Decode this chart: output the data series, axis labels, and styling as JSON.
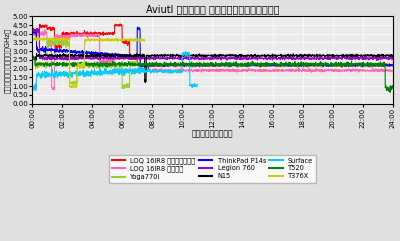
{
  "title": "Aviutl エンコード 平均クロックスピード推移",
  "xlabel": "経過時間（分：秒）",
  "ylabel": "平均クロックスピード（GHz）",
  "ylim": [
    0.0,
    5.0
  ],
  "yticks": [
    0.0,
    0.5,
    1.0,
    1.5,
    2.0,
    2.5,
    3.0,
    3.5,
    4.0,
    4.5,
    5.0
  ],
  "xtick_minutes": [
    0,
    2,
    4,
    6,
    8,
    10,
    12,
    14,
    16,
    18,
    20,
    22,
    24
  ],
  "background_color": "#e0e0e0",
  "plot_bg_color": "#ebebeb",
  "grid_color": "#ffffff",
  "series": {
    "LOQ 16IR8 パフォーマンス": {
      "color": "#ff0000",
      "lw": 0.8
    },
    "LOQ 16IR8 バランス": {
      "color": "#ff69b4",
      "lw": 0.8
    },
    "Yoga770i": {
      "color": "#9acd32",
      "lw": 0.8
    },
    "ThinkPad P14s": {
      "color": "#0000ff",
      "lw": 0.8
    },
    "Legion 760": {
      "color": "#9900cc",
      "lw": 0.8
    },
    "N15": {
      "color": "#000000",
      "lw": 0.8
    },
    "Surface": {
      "color": "#00ccff",
      "lw": 0.8
    },
    "T520": {
      "color": "#008000",
      "lw": 0.8
    },
    "T376X": {
      "color": "#cccc00",
      "lw": 0.8
    }
  },
  "legend_order": [
    "LOQ 16IR8 パフォーマンス",
    "LOQ 16IR8 バランス",
    "Yoga770i",
    "ThinkPad P14s",
    "Legion 760",
    "N15",
    "Surface",
    "T520",
    "T376X"
  ]
}
